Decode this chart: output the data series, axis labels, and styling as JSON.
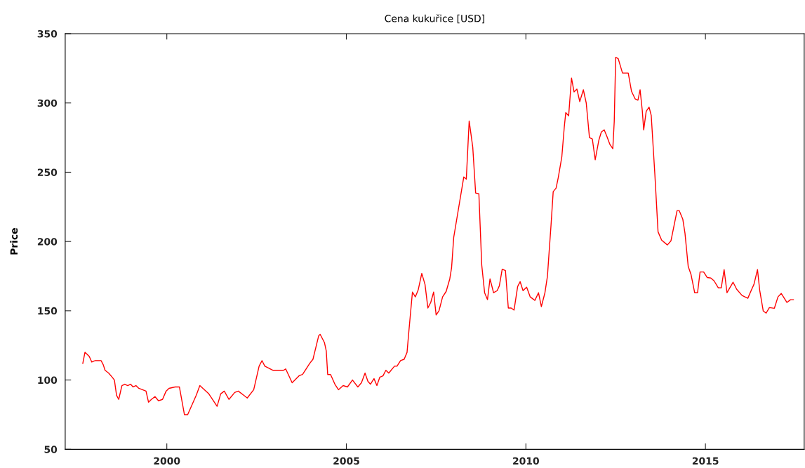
{
  "chart_data": {
    "type": "line",
    "title": "Cena kukuřice [USD]",
    "ylabel": "Price",
    "xlim": [
      1997.17,
      2017.75
    ],
    "xticks": [
      2000,
      2005,
      2010,
      2015
    ],
    "ylim": [
      50,
      350
    ],
    "yticks": [
      50,
      100,
      150,
      200,
      250,
      300,
      350
    ],
    "grid": false,
    "marker": "none",
    "line_style": "solid",
    "series": [
      {
        "color": "#ff0000",
        "x": [
          1997.66,
          1997.72,
          1997.84,
          1997.91,
          1998.01,
          1998.17,
          1998.23,
          1998.28,
          1998.38,
          1998.48,
          1998.54,
          1998.6,
          1998.66,
          1998.75,
          1998.83,
          1998.91,
          1998.99,
          1999.06,
          1999.14,
          1999.22,
          1999.32,
          1999.42,
          1999.49,
          1999.57,
          1999.67,
          1999.77,
          1999.88,
          1999.98,
          2000.06,
          2000.23,
          2000.35,
          2000.49,
          2000.58,
          2000.82,
          2000.92,
          2001.17,
          2001.4,
          2001.5,
          2001.6,
          2001.73,
          2001.89,
          2001.99,
          2002.14,
          2002.24,
          2002.42,
          2002.57,
          2002.65,
          2002.73,
          2002.96,
          2003.16,
          2003.25,
          2003.31,
          2003.49,
          2003.68,
          2003.78,
          2003.98,
          2004.07,
          2004.23,
          2004.27,
          2004.39,
          2004.44,
          2004.48,
          2004.56,
          2004.68,
          2004.78,
          2004.91,
          2005.03,
          2005.17,
          2005.32,
          2005.42,
          2005.52,
          2005.6,
          2005.67,
          2005.77,
          2005.85,
          2005.93,
          2006.02,
          2006.1,
          2006.18,
          2006.34,
          2006.41,
          2006.51,
          2006.61,
          2006.69,
          2006.74,
          2006.84,
          2006.92,
          2007.0,
          2007.1,
          2007.19,
          2007.27,
          2007.35,
          2007.43,
          2007.5,
          2007.58,
          2007.68,
          2007.78,
          2007.88,
          2007.93,
          2007.99,
          2008.27,
          2008.34,
          2008.42,
          2008.52,
          2008.6,
          2008.69,
          2008.77,
          2008.85,
          2008.93,
          2009.0,
          2009.1,
          2009.2,
          2009.26,
          2009.34,
          2009.43,
          2009.51,
          2009.59,
          2009.67,
          2009.77,
          2009.84,
          2009.92,
          2010.02,
          2010.12,
          2010.25,
          2010.35,
          2010.43,
          2010.53,
          2010.6,
          2010.64,
          2010.7,
          2010.76,
          2010.84,
          2010.9,
          2011.0,
          2011.07,
          2011.11,
          2011.19,
          2011.27,
          2011.34,
          2011.42,
          2011.5,
          2011.6,
          2011.68,
          2011.77,
          2011.85,
          2011.93,
          2012.03,
          2012.1,
          2012.18,
          2012.26,
          2012.34,
          2012.42,
          2012.46,
          2012.5,
          2012.57,
          2012.69,
          2012.85,
          2012.94,
          2013.04,
          2013.12,
          2013.18,
          2013.24,
          2013.28,
          2013.35,
          2013.43,
          2013.49,
          2013.59,
          2013.68,
          2013.78,
          2013.94,
          2014.04,
          2014.21,
          2014.27,
          2014.37,
          2014.43,
          2014.52,
          2014.6,
          2014.7,
          2014.78,
          2014.85,
          2014.95,
          2015.05,
          2015.15,
          2015.24,
          2015.36,
          2015.44,
          2015.52,
          2015.6,
          2015.77,
          2015.87,
          2016.02,
          2016.18,
          2016.28,
          2016.35,
          2016.45,
          2016.51,
          2016.61,
          2016.69,
          2016.78,
          2016.92,
          2017.02,
          2017.11,
          2017.27,
          2017.37,
          2017.45
        ],
        "values": [
          112,
          120,
          117,
          113,
          114,
          114,
          111,
          107,
          105,
          102,
          100,
          89,
          86,
          96,
          97,
          96,
          97,
          95,
          96,
          94,
          93,
          92,
          84,
          86,
          88,
          85,
          86,
          92,
          94,
          95,
          95,
          75,
          75,
          89,
          96,
          90,
          81,
          90,
          92,
          86,
          91,
          92,
          89,
          87,
          93,
          110,
          114,
          110,
          107,
          107,
          107,
          108,
          98,
          103,
          104,
          112,
          115,
          132,
          133,
          127,
          121,
          104,
          104,
          97,
          93,
          96,
          95,
          100,
          95,
          98,
          105,
          99,
          97,
          101,
          96,
          102,
          103,
          107,
          105,
          110,
          110,
          114,
          115,
          120,
          135,
          163.5,
          160,
          165,
          177,
          169,
          152,
          156,
          163.5,
          147,
          150,
          160,
          164,
          173,
          181,
          203,
          246.6,
          245,
          287,
          268,
          235,
          234.5,
          183,
          163,
          158,
          173,
          163,
          164.5,
          168,
          180,
          179,
          152,
          152,
          150.5,
          167.5,
          171,
          164.5,
          167,
          160,
          157.5,
          163,
          153,
          163,
          175,
          190,
          212,
          236,
          238.5,
          246,
          261,
          283,
          293,
          290.7,
          318,
          308,
          310,
          301,
          309.5,
          300,
          275,
          274,
          259,
          273,
          279,
          280.6,
          275.5,
          270,
          267,
          286.6,
          333,
          332,
          321.6,
          321.6,
          308.5,
          303,
          302,
          309.5,
          294.8,
          280.6,
          294,
          297,
          291,
          249,
          207,
          201,
          197.5,
          200.5,
          222.3,
          222.3,
          216,
          206,
          182,
          176,
          163,
          163,
          178,
          178,
          174,
          173.6,
          171.6,
          166.5,
          166.5,
          179.7,
          163,
          170.6,
          165.5,
          161,
          159,
          165,
          169,
          179.7,
          165,
          149.8,
          148.3,
          152.3,
          151.8,
          160,
          162.5,
          156,
          158,
          158
        ]
      }
    ]
  }
}
